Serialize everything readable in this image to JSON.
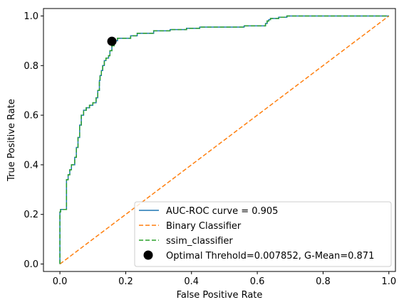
{
  "chart_data": {
    "type": "line",
    "xlabel": "False Positive Rate",
    "ylabel": "True Positive Rate",
    "xlim": [
      -0.05,
      1.02
    ],
    "ylim": [
      -0.03,
      1.03
    ],
    "x_ticks": [
      "0.0",
      "0.2",
      "0.4",
      "0.6",
      "0.8",
      "1.0"
    ],
    "y_ticks": [
      "0.0",
      "0.2",
      "0.4",
      "0.6",
      "0.8",
      "1.0"
    ],
    "grid": false,
    "legend_position": "lower-right",
    "series": [
      {
        "name": "AUC-ROC curve = 0.905",
        "color": "#1f77b4",
        "style": "solid",
        "x": [
          0.0,
          0.0,
          0.002,
          0.002,
          0.02,
          0.02,
          0.025,
          0.025,
          0.03,
          0.03,
          0.035,
          0.035,
          0.045,
          0.045,
          0.05,
          0.05,
          0.055,
          0.055,
          0.06,
          0.06,
          0.065,
          0.065,
          0.072,
          0.072,
          0.08,
          0.08,
          0.09,
          0.09,
          0.1,
          0.1,
          0.11,
          0.11,
          0.115,
          0.115,
          0.12,
          0.12,
          0.122,
          0.122,
          0.126,
          0.126,
          0.13,
          0.13,
          0.135,
          0.135,
          0.14,
          0.14,
          0.148,
          0.148,
          0.152,
          0.152,
          0.158,
          0.158,
          0.165,
          0.165,
          0.175,
          0.175,
          0.215,
          0.215,
          0.235,
          0.235,
          0.285,
          0.285,
          0.335,
          0.335,
          0.385,
          0.385,
          0.425,
          0.425,
          0.46,
          0.46,
          0.56,
          0.56,
          0.625,
          0.625,
          0.63,
          0.63,
          0.635,
          0.635,
          0.64,
          0.64,
          0.665,
          0.665,
          0.69,
          0.69,
          1.0
        ],
        "y": [
          0.0,
          0.21,
          0.21,
          0.22,
          0.22,
          0.34,
          0.34,
          0.36,
          0.36,
          0.38,
          0.38,
          0.4,
          0.4,
          0.43,
          0.43,
          0.47,
          0.47,
          0.51,
          0.51,
          0.56,
          0.56,
          0.6,
          0.6,
          0.62,
          0.62,
          0.63,
          0.63,
          0.64,
          0.64,
          0.65,
          0.65,
          0.67,
          0.67,
          0.7,
          0.7,
          0.74,
          0.74,
          0.76,
          0.76,
          0.78,
          0.78,
          0.8,
          0.8,
          0.82,
          0.82,
          0.83,
          0.83,
          0.84,
          0.84,
          0.86,
          0.86,
          0.88,
          0.88,
          0.9,
          0.9,
          0.91,
          0.91,
          0.92,
          0.92,
          0.93,
          0.93,
          0.94,
          0.94,
          0.945,
          0.945,
          0.95,
          0.95,
          0.955,
          0.955,
          0.955,
          0.955,
          0.96,
          0.96,
          0.97,
          0.97,
          0.98,
          0.98,
          0.985,
          0.985,
          0.99,
          0.99,
          0.995,
          0.995,
          1.0,
          1.0
        ]
      },
      {
        "name": "Binary Classifier",
        "color": "#ff7f0e",
        "style": "dashed",
        "x": [
          0.0,
          1.0
        ],
        "y": [
          0.0,
          1.0
        ]
      },
      {
        "name": "ssim_classifier",
        "color": "#2ca02c",
        "style": "dashed",
        "x": [
          0.0,
          0.0,
          0.002,
          0.002,
          0.02,
          0.02,
          0.025,
          0.025,
          0.03,
          0.03,
          0.035,
          0.035,
          0.045,
          0.045,
          0.05,
          0.05,
          0.055,
          0.055,
          0.06,
          0.06,
          0.065,
          0.065,
          0.072,
          0.072,
          0.08,
          0.08,
          0.09,
          0.09,
          0.1,
          0.1,
          0.11,
          0.11,
          0.115,
          0.115,
          0.12,
          0.12,
          0.122,
          0.122,
          0.126,
          0.126,
          0.13,
          0.13,
          0.135,
          0.135,
          0.14,
          0.14,
          0.148,
          0.148,
          0.152,
          0.152,
          0.158,
          0.158,
          0.165,
          0.165,
          0.175,
          0.175,
          0.215,
          0.215,
          0.235,
          0.235,
          0.285,
          0.285,
          0.335,
          0.335,
          0.385,
          0.385,
          0.425,
          0.425,
          0.46,
          0.46,
          0.56,
          0.56,
          0.625,
          0.625,
          0.63,
          0.63,
          0.635,
          0.635,
          0.64,
          0.64,
          0.665,
          0.665,
          0.69,
          0.69,
          1.0
        ],
        "y": [
          0.0,
          0.21,
          0.21,
          0.22,
          0.22,
          0.34,
          0.34,
          0.36,
          0.36,
          0.38,
          0.38,
          0.4,
          0.4,
          0.43,
          0.43,
          0.47,
          0.47,
          0.51,
          0.51,
          0.56,
          0.56,
          0.6,
          0.6,
          0.62,
          0.62,
          0.63,
          0.63,
          0.64,
          0.64,
          0.65,
          0.65,
          0.67,
          0.67,
          0.7,
          0.7,
          0.74,
          0.74,
          0.76,
          0.76,
          0.78,
          0.78,
          0.8,
          0.8,
          0.82,
          0.82,
          0.83,
          0.83,
          0.84,
          0.84,
          0.86,
          0.86,
          0.88,
          0.88,
          0.9,
          0.9,
          0.91,
          0.91,
          0.92,
          0.92,
          0.93,
          0.93,
          0.94,
          0.94,
          0.945,
          0.945,
          0.95,
          0.95,
          0.955,
          0.955,
          0.955,
          0.955,
          0.96,
          0.96,
          0.97,
          0.97,
          0.98,
          0.98,
          0.985,
          0.985,
          0.99,
          0.99,
          0.995,
          0.995,
          1.0,
          1.0
        ]
      }
    ],
    "optimal_point": {
      "name": "Optimal Threhold=0.007852, G-Mean=0.871",
      "color": "#000000",
      "x": 0.158,
      "y": 0.898
    }
  }
}
